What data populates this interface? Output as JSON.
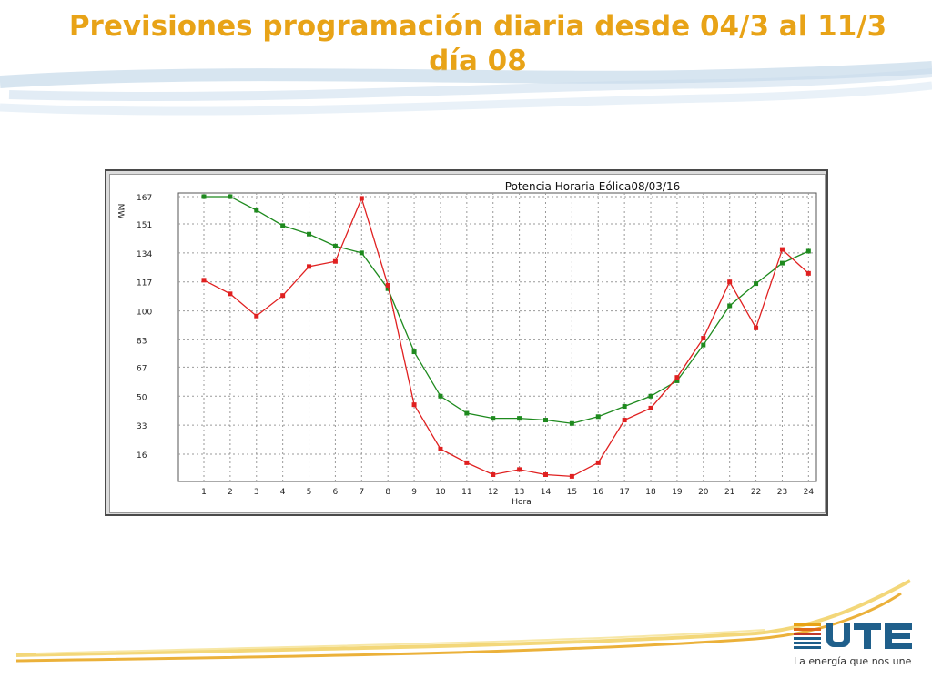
{
  "slide": {
    "title": "Previsiones programación diaria desde 04/3 al 11/3 día 08"
  },
  "brand": {
    "name": "UTE",
    "tagline": "La energía que nos une",
    "colors": {
      "title": "#e8a317",
      "logo_blue": "#1f5f8b"
    }
  },
  "chart_data": {
    "type": "line",
    "title": "Potencia Horaria Eólica08/03/16",
    "xlabel": "Hora",
    "ylabel": "MW",
    "categories": [
      1,
      2,
      3,
      4,
      5,
      6,
      7,
      8,
      9,
      10,
      11,
      12,
      13,
      14,
      15,
      16,
      17,
      18,
      19,
      20,
      21,
      22,
      23,
      24
    ],
    "yticks": [
      16,
      33,
      50,
      67,
      83,
      100,
      117,
      134,
      151,
      167
    ],
    "ylim": [
      0,
      167
    ],
    "grid": true,
    "series": [
      {
        "color": "#1e8a1e",
        "values": [
          167,
          167,
          159,
          150,
          145,
          138,
          134,
          113,
          76,
          50,
          40,
          37,
          37,
          36,
          34,
          38,
          44,
          50,
          59,
          80,
          103,
          116,
          128,
          135
        ]
      },
      {
        "color": "#e02020",
        "values": [
          118,
          110,
          97,
          109,
          126,
          129,
          166,
          115,
          45,
          19,
          11,
          4,
          7,
          4,
          3,
          11,
          36,
          43,
          61,
          84,
          117,
          90,
          136,
          122
        ]
      }
    ]
  }
}
